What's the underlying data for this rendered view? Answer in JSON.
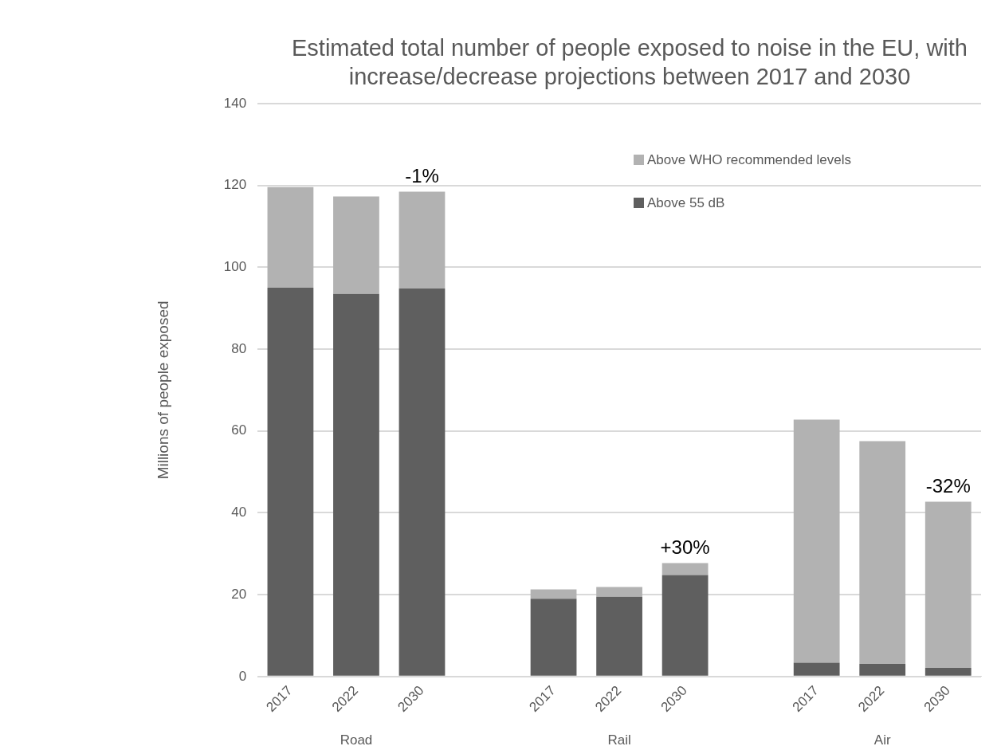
{
  "chart_data": {
    "type": "bar",
    "title": "Estimated total number of people exposed to noise in the EU, with increase/decrease projections between 2017 and 2030",
    "ylabel": "Millions of people exposed",
    "categories": [
      "2017",
      "2022",
      "2030",
      null,
      "2017",
      "2022",
      "2030",
      null,
      "2017",
      "2022",
      "2030"
    ],
    "series": [
      {
        "name": "Above 55 dB",
        "color": "#5f5f5f",
        "values": [
          95,
          93.5,
          94.8,
          null,
          19,
          19.5,
          24.8,
          null,
          3.4,
          3.1,
          2.1
        ]
      },
      {
        "name": "Above WHO recommended levels",
        "color": "#b2b2b2",
        "values": [
          24.6,
          23.8,
          23.7,
          null,
          2.3,
          2.4,
          2.9,
          null,
          59.4,
          54.4,
          40.6
        ]
      }
    ],
    "annotations": [
      "Road",
      "Rail",
      "Air",
      "-1%",
      "+30%",
      "-32%"
    ],
    "stacked": true,
    "ylim": [
      0,
      140
    ],
    "yticks": [
      0,
      20,
      40,
      60,
      80,
      100,
      120,
      140
    ],
    "grid": "y",
    "legend": "top right"
  }
}
